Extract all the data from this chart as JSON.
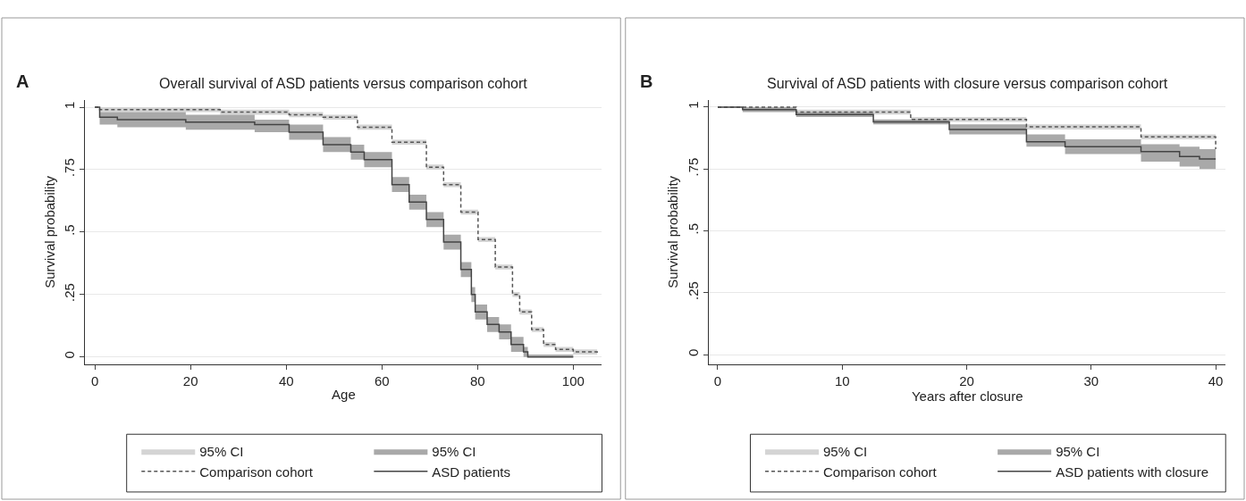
{
  "chart_data": [
    {
      "type": "step",
      "title": "Overall survival of ASD patients versus comparison cohort",
      "annotations": [
        "A"
      ],
      "xlabel": "Age",
      "ylabel": "Survival probability",
      "xlim": [
        -2,
        106
      ],
      "xticks": [
        0,
        20,
        40,
        60,
        80,
        100
      ],
      "ylim": [
        -0.03,
        1.03
      ],
      "yticks": [
        0,
        {
          "value": 0.25,
          "label": ".25"
        },
        {
          "value": 0.5,
          "label": ".5"
        },
        {
          "value": 0.75,
          "label": ".75"
        },
        1
      ],
      "grid": "y",
      "legend": "bottom",
      "series": [
        {
          "name": "95% CI",
          "type": "area",
          "color": "#d4d4d4"
        },
        {
          "name": "95% CI",
          "type": "area",
          "color": "#a9a9a9"
        },
        {
          "name": "Comparison cohort",
          "color": "#555555",
          "line_style": "dashed",
          "x": [
            0,
            1,
            26.2,
            40.6,
            47.7,
            54.9,
            62.1,
            69.3,
            72.9,
            76.5,
            80.1,
            83.7,
            87.3,
            88.8,
            91.3,
            93.8,
            96.3,
            100,
            105
          ],
          "values": [
            1,
            0.99,
            0.98,
            0.97,
            0.96,
            0.92,
            0.86,
            0.76,
            0.69,
            0.58,
            0.47,
            0.36,
            0.25,
            0.18,
            0.11,
            0.05,
            0.03,
            0.02,
            0.01
          ],
          "lower": [
            1,
            0.98,
            0.97,
            0.96,
            0.95,
            0.91,
            0.85,
            0.75,
            0.68,
            0.57,
            0.46,
            0.35,
            0.24,
            0.17,
            0.1,
            0.04,
            0.02,
            0.01,
            0
          ],
          "upper": [
            1,
            1,
            0.99,
            0.98,
            0.97,
            0.93,
            0.87,
            0.77,
            0.7,
            0.59,
            0.48,
            0.37,
            0.26,
            0.19,
            0.12,
            0.06,
            0.04,
            0.03,
            0.02
          ]
        },
        {
          "name": "ASD patients",
          "color": "#444444",
          "line_style": "solid",
          "x": [
            0,
            1,
            4.7,
            19,
            33.4,
            40.6,
            47.7,
            53.5,
            56.3,
            62.1,
            65.7,
            69.3,
            72.9,
            76.5,
            78.7,
            79.5,
            82,
            84.5,
            87,
            89.6,
            90.5,
            100
          ],
          "values": [
            1,
            0.96,
            0.95,
            0.94,
            0.93,
            0.9,
            0.85,
            0.82,
            0.79,
            0.69,
            0.62,
            0.55,
            0.46,
            0.35,
            0.25,
            0.18,
            0.13,
            0.1,
            0.05,
            0.02,
            0,
            0
          ],
          "lower": [
            1,
            0.93,
            0.92,
            0.91,
            0.9,
            0.87,
            0.82,
            0.79,
            0.76,
            0.66,
            0.59,
            0.52,
            0.43,
            0.32,
            0.22,
            0.15,
            0.1,
            0.07,
            0.02,
            0,
            0,
            0
          ],
          "upper": [
            1,
            0.98,
            0.98,
            0.97,
            0.95,
            0.93,
            0.88,
            0.85,
            0.82,
            0.72,
            0.65,
            0.58,
            0.49,
            0.38,
            0.28,
            0.21,
            0.16,
            0.13,
            0.08,
            0.04,
            0.01,
            0
          ]
        }
      ]
    },
    {
      "type": "step",
      "title": "Survival of ASD patients with closure versus comparison cohort",
      "annotations": [
        "B"
      ],
      "xlabel": "Years after closure",
      "ylabel": "Survival probability",
      "xlim": [
        -0.7,
        40.8
      ],
      "xticks": [
        0,
        10,
        20,
        30,
        40
      ],
      "ylim": [
        -0.04,
        1.03
      ],
      "yticks": [
        0,
        {
          "value": 0.25,
          "label": ".25"
        },
        {
          "value": 0.5,
          "label": ".5"
        },
        {
          "value": 0.75,
          "label": ".75"
        },
        1
      ],
      "grid": "y",
      "legend": "bottom",
      "series": [
        {
          "name": "95% CI",
          "type": "area",
          "color": "#d4d4d4"
        },
        {
          "name": "95% CI",
          "type": "area",
          "color": "#a9a9a9"
        },
        {
          "name": "Comparison cohort",
          "color": "#555555",
          "line_style": "dashed",
          "x": [
            0,
            6.3,
            15.5,
            24.8,
            34,
            40
          ],
          "values": [
            1,
            0.98,
            0.95,
            0.92,
            0.88,
            0.83
          ],
          "lower": [
            1,
            0.97,
            0.94,
            0.91,
            0.87,
            0.82
          ],
          "upper": [
            1,
            0.99,
            0.96,
            0.93,
            0.89,
            0.84
          ]
        },
        {
          "name": "ASD patients with closure",
          "color": "#444444",
          "line_style": "solid",
          "x": [
            0,
            2,
            6.3,
            12.5,
            18.6,
            24.8,
            27.9,
            34,
            37.1,
            38.7,
            40
          ],
          "values": [
            1,
            0.99,
            0.97,
            0.94,
            0.91,
            0.86,
            0.84,
            0.82,
            0.8,
            0.79,
            0.79
          ],
          "lower": [
            1,
            0.98,
            0.96,
            0.93,
            0.89,
            0.84,
            0.81,
            0.78,
            0.76,
            0.75,
            0.75
          ],
          "upper": [
            1,
            1,
            0.98,
            0.95,
            0.93,
            0.89,
            0.87,
            0.85,
            0.84,
            0.83,
            0.83
          ]
        }
      ]
    }
  ]
}
